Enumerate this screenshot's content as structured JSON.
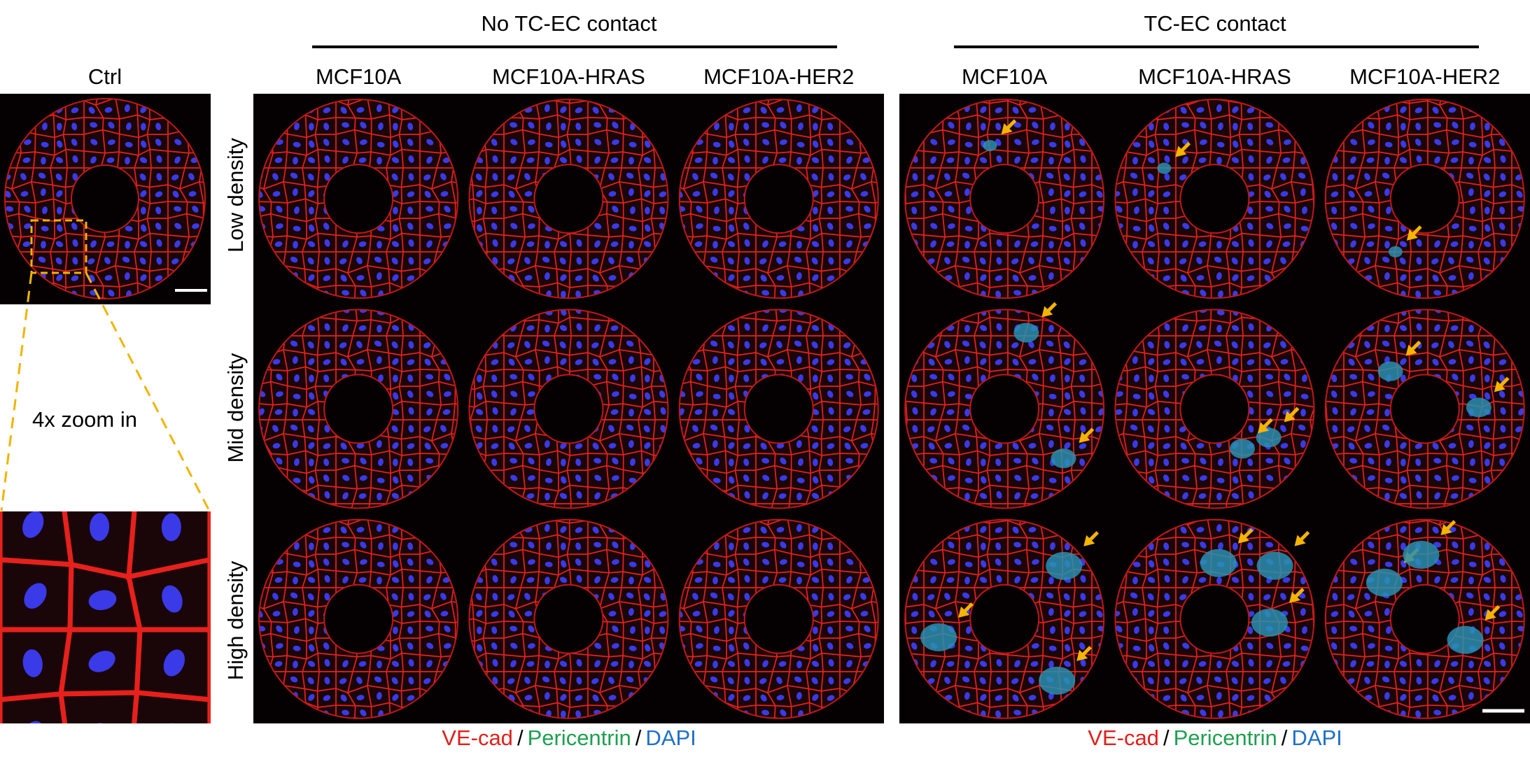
{
  "header": {
    "groups": [
      {
        "title": "No TC-EC contact",
        "columns": [
          "MCF10A",
          "MCF10A-HRAS",
          "MCF10A-HER2"
        ]
      },
      {
        "title": "TC-EC contact",
        "columns": [
          "MCF10A",
          "MCF10A-HRAS",
          "MCF10A-HER2"
        ]
      }
    ]
  },
  "ctrl": {
    "title": "Ctrl",
    "zoom_label": "4x zoom in"
  },
  "rows": [
    "Low density",
    "Mid density",
    "High density"
  ],
  "legend": {
    "items": [
      "VE-cad",
      "Pericentrin",
      "DAPI"
    ],
    "separator": "/"
  }
}
